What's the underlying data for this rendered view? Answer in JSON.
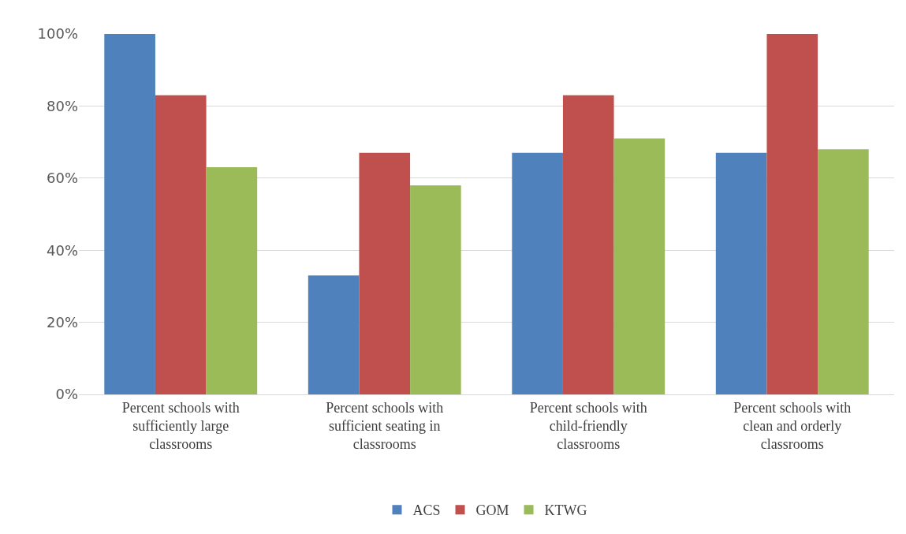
{
  "chart_data": {
    "type": "bar",
    "categories": [
      "Percent schools with sufficiently large classrooms",
      "Percent schools with sufficient seating in classrooms",
      "Percent schools with child-friendly classrooms",
      "Percent schools with clean and orderly classrooms"
    ],
    "series": [
      {
        "name": "ACS",
        "color": "#4f81bd",
        "values": [
          100,
          33,
          67,
          67
        ]
      },
      {
        "name": "GOM",
        "color": "#c0504d",
        "values": [
          83,
          67,
          83,
          100
        ]
      },
      {
        "name": "KTWG",
        "color": "#9bbb59",
        "values": [
          63,
          58,
          71,
          68
        ]
      }
    ],
    "ylim": [
      0,
      100
    ],
    "yticks": [
      {
        "value": 0,
        "label": "0%"
      },
      {
        "value": 20,
        "label": "20%"
      },
      {
        "value": 40,
        "label": "40%"
      },
      {
        "value": 60,
        "label": "60%"
      },
      {
        "value": 80,
        "label": "80%"
      },
      {
        "value": 100,
        "label": "100%"
      }
    ],
    "grid": "y",
    "legend": "bottom"
  }
}
